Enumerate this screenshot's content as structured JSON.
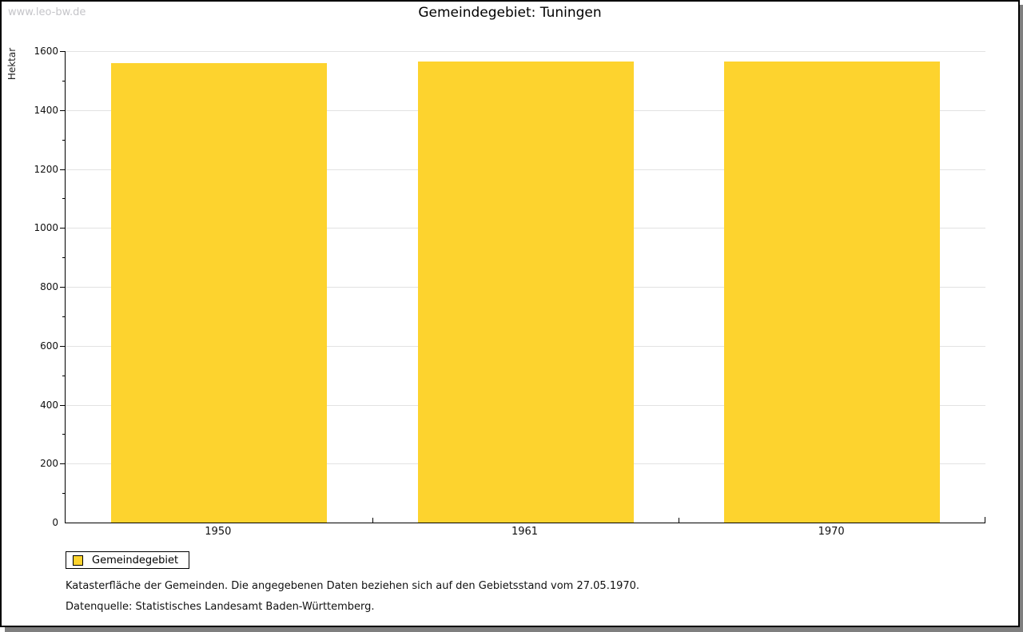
{
  "watermark": "www.leo-bw.de",
  "header": {
    "title": "Gemeindegebiet: Tuningen"
  },
  "chart_data": {
    "type": "bar",
    "title": "Gemeindegebiet: Tuningen",
    "categories": [
      "1950",
      "1961",
      "1970"
    ],
    "series": [
      {
        "name": "Gemeindegebiet",
        "color": "#FDD32E",
        "values": [
          1560,
          1565,
          1565
        ]
      }
    ],
    "xlabel": "",
    "ylabel": "Hektar",
    "ylim": [
      0,
      1600
    ],
    "ytick_interval": 200,
    "yminortick_interval": 100,
    "grid": "horizontal",
    "legend_position": "bottom-left",
    "bar_color": "#FDD32E",
    "unit": "Hektar"
  },
  "legend": {
    "items": [
      {
        "label": "Gemeindegebiet",
        "color": "#FDD32E"
      }
    ]
  },
  "footnotes": {
    "line1": "Katasterfläche der Gemeinden. Die angegebenen Daten beziehen sich auf den Gebietsstand vom 27.05.1970.",
    "line2": "Datenquelle: Statistisches Landesamt Baden-Württemberg."
  }
}
